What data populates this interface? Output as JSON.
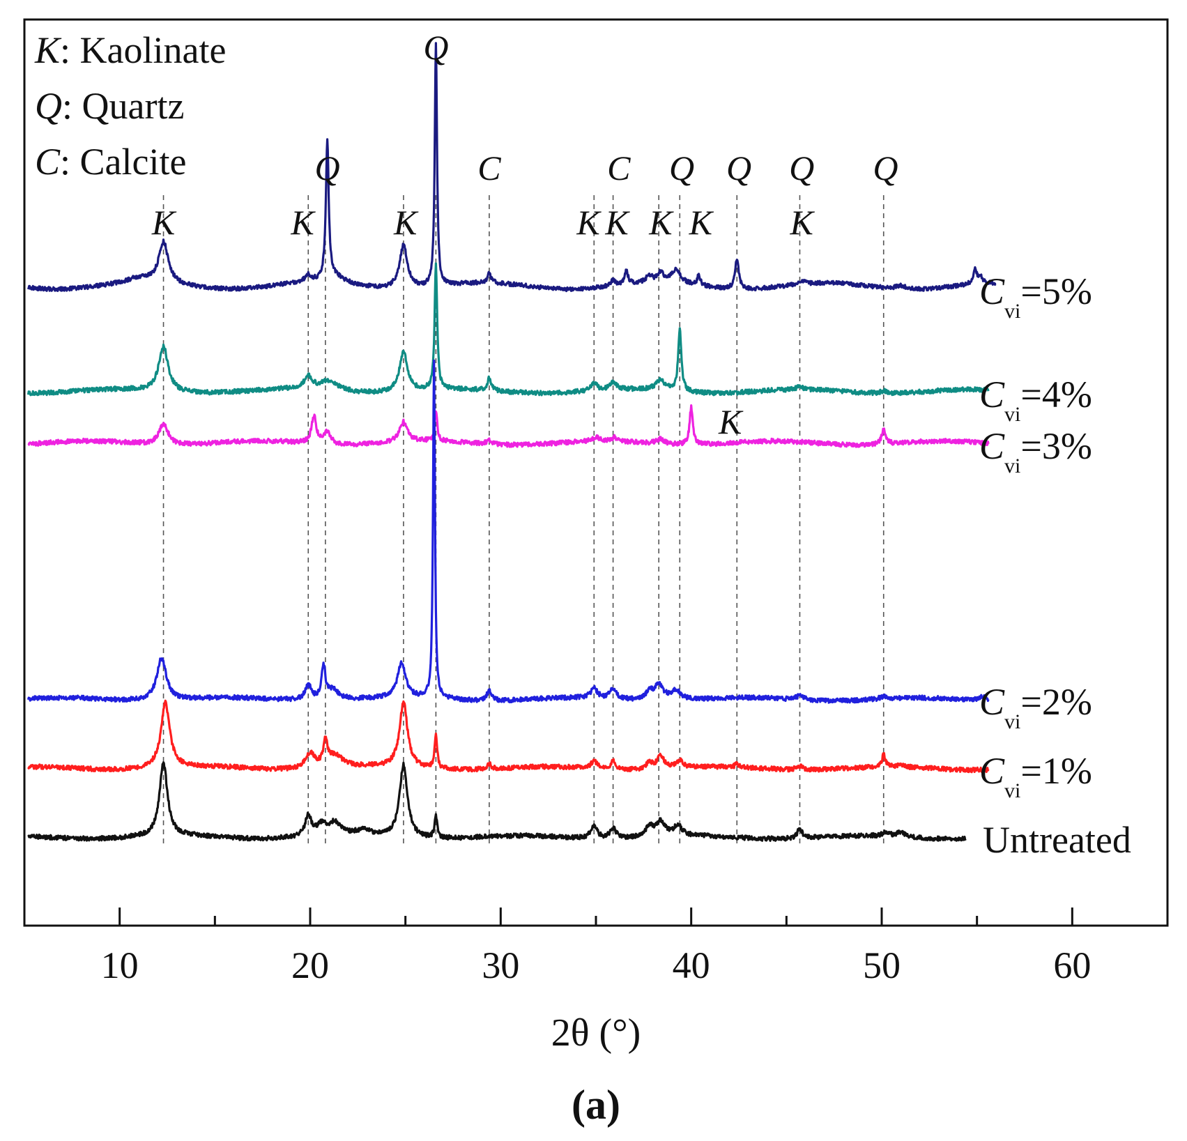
{
  "chart_data": {
    "type": "line",
    "title": "",
    "panel_label": "(a)",
    "xlabel": "2θ (°)",
    "ylabel": "",
    "xlim": [
      5,
      65
    ],
    "x_ticks": [
      10,
      20,
      30,
      40,
      50,
      60
    ],
    "legend": [
      {
        "symbol": "K",
        "name": "Kaolinate"
      },
      {
        "symbol": "Q",
        "name": "Quartz"
      },
      {
        "symbol": "C",
        "name": "Calcite"
      }
    ],
    "reference_lines": [
      12.3,
      19.9,
      20.8,
      24.9,
      26.6,
      29.4,
      34.9,
      35.9,
      38.3,
      39.4,
      42.4,
      45.7,
      50.1
    ],
    "peak_labels": [
      {
        "text": "K",
        "x": 12.3,
        "row": 2
      },
      {
        "text": "K",
        "x": 19.6,
        "row": 2
      },
      {
        "text": "Q",
        "x": 20.9,
        "row": 1
      },
      {
        "text": "K",
        "x": 25.0,
        "row": 2
      },
      {
        "text": "Q",
        "x": 26.6,
        "row": 0
      },
      {
        "text": "C",
        "x": 29.4,
        "row": 1
      },
      {
        "text": "K",
        "x": 34.6,
        "row": 2
      },
      {
        "text": "K",
        "x": 36.1,
        "row": 2
      },
      {
        "text": "C",
        "x": 36.2,
        "row": 1
      },
      {
        "text": "K",
        "x": 38.4,
        "row": 2
      },
      {
        "text": "Q",
        "x": 39.5,
        "row": 1
      },
      {
        "text": "K",
        "x": 40.5,
        "row": 2
      },
      {
        "text": "Q",
        "x": 42.5,
        "row": 1
      },
      {
        "text": "Q",
        "x": 45.8,
        "row": 1
      },
      {
        "text": "K",
        "x": 45.8,
        "row": 2
      },
      {
        "text": "Q",
        "x": 50.2,
        "row": 1
      }
    ],
    "series": [
      {
        "name": "Cvi=5%",
        "label_main": "C",
        "label_sub": "vi",
        "label_rest": "=5%",
        "color": "#1a1a80",
        "x_end": 56,
        "baseline": 0.9,
        "peaks": [
          [
            11.0,
            0.2,
            0.7
          ],
          [
            12.3,
            1.8,
            0.3
          ],
          [
            19.9,
            0.3,
            0.2
          ],
          [
            20.9,
            6.0,
            0.09
          ],
          [
            21.3,
            0.3,
            0.6
          ],
          [
            24.9,
            1.9,
            0.25
          ],
          [
            26.6,
            10.5,
            0.07
          ],
          [
            29.4,
            0.4,
            0.12
          ],
          [
            35.9,
            0.25,
            0.15
          ],
          [
            36.6,
            0.6,
            0.1
          ],
          [
            37.8,
            0.3,
            0.2
          ],
          [
            38.4,
            0.4,
            0.2
          ],
          [
            39.2,
            0.6,
            0.3
          ],
          [
            40.4,
            0.45,
            0.1
          ],
          [
            42.4,
            1.3,
            0.12
          ],
          [
            45.8,
            0.15,
            0.2
          ],
          [
            51.0,
            0.15,
            0.3
          ],
          [
            54.9,
            0.6,
            0.12
          ],
          [
            55.2,
            0.3,
            0.12
          ]
        ]
      },
      {
        "name": "Cvi=4%",
        "label_main": "C",
        "label_sub": "vi",
        "label_rest": "=4%",
        "color": "#0f8c84",
        "x_end": 55.6,
        "baseline": 0.5,
        "peaks": [
          [
            12.3,
            1.8,
            0.3
          ],
          [
            19.9,
            0.5,
            0.25
          ],
          [
            21.0,
            0.4,
            0.6
          ],
          [
            24.9,
            1.6,
            0.25
          ],
          [
            26.6,
            5.0,
            0.08
          ],
          [
            29.4,
            0.5,
            0.12
          ],
          [
            34.9,
            0.3,
            0.2
          ],
          [
            35.9,
            0.3,
            0.2
          ],
          [
            38.4,
            0.4,
            0.3
          ],
          [
            39.4,
            2.5,
            0.1
          ],
          [
            45.7,
            0.1,
            0.2
          ],
          [
            50.1,
            0.1,
            0.2
          ]
        ]
      },
      {
        "name": "Cvi=3%",
        "label_main": "C",
        "label_sub": "vi",
        "label_rest": "=3%",
        "color": "#ee22e0",
        "x_end": 55.6,
        "baseline": 0.5,
        "peaks": [
          [
            12.3,
            0.8,
            0.3
          ],
          [
            20.2,
            1.1,
            0.15
          ],
          [
            20.9,
            0.5,
            0.2
          ],
          [
            24.9,
            0.8,
            0.25
          ],
          [
            26.6,
            1.2,
            0.08
          ],
          [
            29.4,
            0.15,
            0.15
          ],
          [
            35.0,
            0.15,
            0.2
          ],
          [
            36.0,
            0.15,
            0.15
          ],
          [
            38.4,
            0.2,
            0.25
          ],
          [
            40.0,
            1.5,
            0.1
          ],
          [
            50.1,
            0.6,
            0.12
          ]
        ]
      },
      {
        "name": "Cvi=2%",
        "label_main": "C",
        "label_sub": "vi",
        "label_rest": "=2%",
        "color": "#2020dd",
        "x_end": 55.6,
        "baseline": 0.4,
        "peaks": [
          [
            12.2,
            1.7,
            0.3
          ],
          [
            19.9,
            0.6,
            0.2
          ],
          [
            20.7,
            1.3,
            0.12
          ],
          [
            21.2,
            0.4,
            0.4
          ],
          [
            24.8,
            1.4,
            0.25
          ],
          [
            26.5,
            13.5,
            0.06
          ],
          [
            29.4,
            0.4,
            0.15
          ],
          [
            34.9,
            0.4,
            0.2
          ],
          [
            35.9,
            0.4,
            0.2
          ],
          [
            37.8,
            0.3,
            0.2
          ],
          [
            38.3,
            0.6,
            0.3
          ],
          [
            39.2,
            0.4,
            0.3
          ],
          [
            45.7,
            0.15,
            0.3
          ],
          [
            50.1,
            0.1,
            0.2
          ],
          [
            55.3,
            0.2,
            0.2
          ]
        ]
      },
      {
        "name": "Cvi=1%",
        "label_main": "C",
        "label_sub": "vi",
        "label_rest": "=1%",
        "color": "#ff1e1e",
        "x_end": 55.6,
        "baseline": 0.4,
        "peaks": [
          [
            12.4,
            2.6,
            0.28
          ],
          [
            20.0,
            0.6,
            0.3
          ],
          [
            20.8,
            1.0,
            0.12
          ],
          [
            21.3,
            0.5,
            0.5
          ],
          [
            24.9,
            2.6,
            0.25
          ],
          [
            26.6,
            1.3,
            0.08
          ],
          [
            29.4,
            0.2,
            0.12
          ],
          [
            34.9,
            0.3,
            0.2
          ],
          [
            35.9,
            0.4,
            0.12
          ],
          [
            37.8,
            0.3,
            0.15
          ],
          [
            38.4,
            0.5,
            0.25
          ],
          [
            39.4,
            0.3,
            0.2
          ],
          [
            42.4,
            0.15,
            0.1
          ],
          [
            45.7,
            0.15,
            0.2
          ],
          [
            50.1,
            0.5,
            0.1
          ],
          [
            51.0,
            0.1,
            0.2
          ]
        ]
      },
      {
        "name": "Untreated",
        "label_main": "Untreated",
        "label_sub": "",
        "label_rest": "",
        "color": "#111111",
        "x_end": 54.4,
        "baseline": 0.4,
        "peaks": [
          [
            12.3,
            2.9,
            0.25
          ],
          [
            19.9,
            0.8,
            0.2
          ],
          [
            20.6,
            0.4,
            0.3
          ],
          [
            21.3,
            0.5,
            0.4
          ],
          [
            22.8,
            0.2,
            0.5
          ],
          [
            24.9,
            2.9,
            0.25
          ],
          [
            26.6,
            0.9,
            0.08
          ],
          [
            34.9,
            0.5,
            0.2
          ],
          [
            35.9,
            0.4,
            0.2
          ],
          [
            37.8,
            0.4,
            0.2
          ],
          [
            38.4,
            0.6,
            0.3
          ],
          [
            39.3,
            0.4,
            0.25
          ],
          [
            45.7,
            0.4,
            0.15
          ],
          [
            50.2,
            0.15,
            0.2
          ],
          [
            51.0,
            0.2,
            0.3
          ]
        ]
      }
    ],
    "inline_annotations": [
      {
        "text": "K",
        "x": 41.0,
        "series": "Cvi=3%"
      }
    ]
  }
}
